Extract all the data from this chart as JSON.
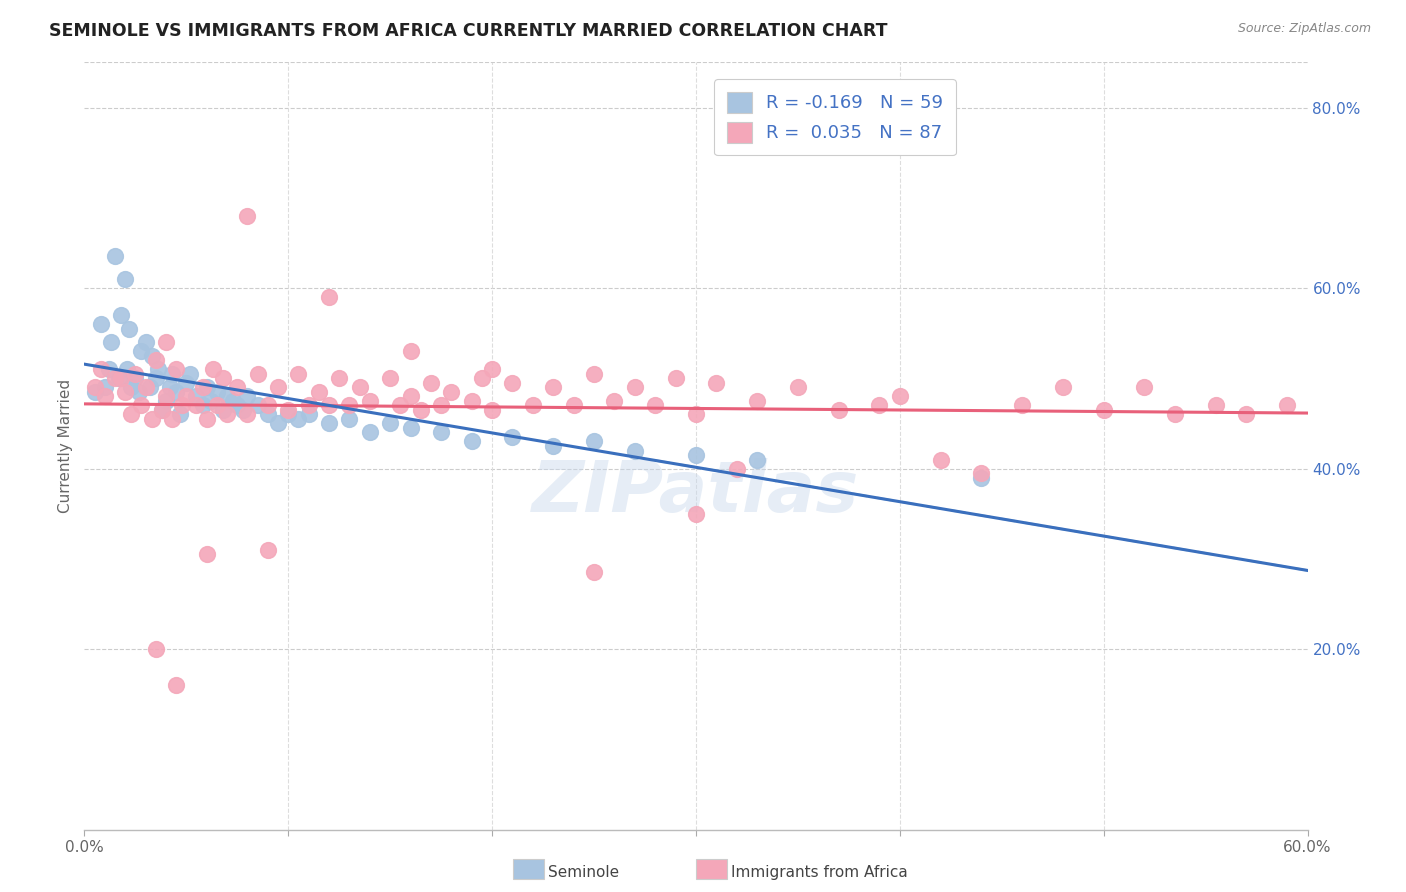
{
  "title": "SEMINOLE VS IMMIGRANTS FROM AFRICA CURRENTLY MARRIED CORRELATION CHART",
  "source": "Source: ZipAtlas.com",
  "xlabel_seminole": "Seminole",
  "xlabel_africa": "Immigrants from Africa",
  "ylabel": "Currently Married",
  "xlim": [
    0.0,
    0.6
  ],
  "ylim": [
    0.0,
    0.85
  ],
  "y_ticks_right": [
    0.2,
    0.4,
    0.6,
    0.8
  ],
  "y_tick_labels_right": [
    "20.0%",
    "40.0%",
    "60.0%",
    "80.0%"
  ],
  "seminole_color": "#a8c4e0",
  "africa_color": "#f4a7b9",
  "seminole_line_color": "#3a6fbd",
  "africa_line_color": "#e8607a",
  "seminole_dash_color": "#b8d4ec",
  "seminole_R": -0.169,
  "seminole_N": 59,
  "africa_R": 0.035,
  "africa_N": 87,
  "legend_text_color": "#4472c4",
  "watermark": "ZIPatlas",
  "seminole_x": [
    0.005,
    0.008,
    0.01,
    0.012,
    0.013,
    0.015,
    0.017,
    0.018,
    0.02,
    0.021,
    0.022,
    0.023,
    0.025,
    0.027,
    0.028,
    0.03,
    0.032,
    0.033,
    0.035,
    0.036,
    0.038,
    0.04,
    0.042,
    0.043,
    0.045,
    0.047,
    0.05,
    0.052,
    0.055,
    0.058,
    0.06,
    0.062,
    0.065,
    0.068,
    0.07,
    0.073,
    0.075,
    0.078,
    0.08,
    0.085,
    0.09,
    0.095,
    0.1,
    0.105,
    0.11,
    0.12,
    0.13,
    0.14,
    0.15,
    0.16,
    0.175,
    0.19,
    0.21,
    0.23,
    0.25,
    0.27,
    0.3,
    0.33,
    0.44
  ],
  "seminole_y": [
    0.485,
    0.56,
    0.49,
    0.51,
    0.54,
    0.635,
    0.5,
    0.57,
    0.61,
    0.51,
    0.555,
    0.49,
    0.5,
    0.485,
    0.53,
    0.54,
    0.49,
    0.525,
    0.5,
    0.51,
    0.465,
    0.475,
    0.49,
    0.505,
    0.485,
    0.46,
    0.495,
    0.505,
    0.48,
    0.47,
    0.49,
    0.475,
    0.485,
    0.465,
    0.48,
    0.475,
    0.47,
    0.465,
    0.48,
    0.47,
    0.46,
    0.45,
    0.46,
    0.455,
    0.46,
    0.45,
    0.455,
    0.44,
    0.45,
    0.445,
    0.44,
    0.43,
    0.435,
    0.425,
    0.43,
    0.42,
    0.415,
    0.41,
    0.39
  ],
  "africa_x": [
    0.005,
    0.008,
    0.01,
    0.015,
    0.018,
    0.02,
    0.023,
    0.025,
    0.028,
    0.03,
    0.033,
    0.035,
    0.038,
    0.04,
    0.043,
    0.045,
    0.048,
    0.05,
    0.055,
    0.058,
    0.06,
    0.063,
    0.065,
    0.068,
    0.07,
    0.075,
    0.08,
    0.085,
    0.09,
    0.095,
    0.1,
    0.105,
    0.11,
    0.115,
    0.12,
    0.125,
    0.13,
    0.135,
    0.14,
    0.15,
    0.155,
    0.16,
    0.165,
    0.17,
    0.175,
    0.18,
    0.19,
    0.195,
    0.2,
    0.21,
    0.22,
    0.23,
    0.24,
    0.25,
    0.26,
    0.27,
    0.28,
    0.29,
    0.3,
    0.31,
    0.32,
    0.33,
    0.35,
    0.37,
    0.39,
    0.4,
    0.42,
    0.44,
    0.46,
    0.48,
    0.5,
    0.52,
    0.535,
    0.555,
    0.57,
    0.59,
    0.04,
    0.12,
    0.16,
    0.2,
    0.25,
    0.3,
    0.06,
    0.09,
    0.035,
    0.045,
    0.08
  ],
  "africa_y": [
    0.49,
    0.51,
    0.48,
    0.5,
    0.5,
    0.485,
    0.46,
    0.505,
    0.47,
    0.49,
    0.455,
    0.52,
    0.465,
    0.48,
    0.455,
    0.51,
    0.47,
    0.48,
    0.47,
    0.49,
    0.455,
    0.51,
    0.47,
    0.5,
    0.46,
    0.49,
    0.46,
    0.505,
    0.47,
    0.49,
    0.465,
    0.505,
    0.47,
    0.485,
    0.47,
    0.5,
    0.47,
    0.49,
    0.475,
    0.5,
    0.47,
    0.48,
    0.465,
    0.495,
    0.47,
    0.485,
    0.475,
    0.5,
    0.465,
    0.495,
    0.47,
    0.49,
    0.47,
    0.505,
    0.475,
    0.49,
    0.47,
    0.5,
    0.46,
    0.495,
    0.4,
    0.475,
    0.49,
    0.465,
    0.47,
    0.48,
    0.41,
    0.395,
    0.47,
    0.49,
    0.465,
    0.49,
    0.46,
    0.47,
    0.46,
    0.47,
    0.54,
    0.59,
    0.53,
    0.51,
    0.285,
    0.35,
    0.305,
    0.31,
    0.2,
    0.16,
    0.68
  ]
}
